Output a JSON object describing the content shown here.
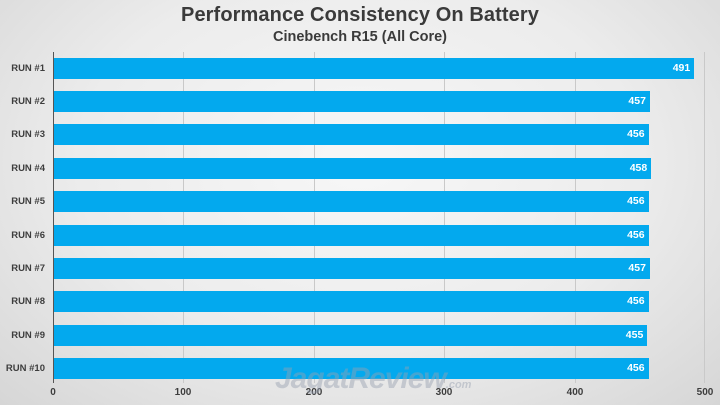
{
  "chart_data": {
    "type": "bar",
    "orientation": "horizontal",
    "title": "Performance Consistency On Battery",
    "subtitle": "Cinebench R15 (All Core)",
    "categories": [
      "RUN #1",
      "RUN #2",
      "RUN #3",
      "RUN #4",
      "RUN #5",
      "RUN #6",
      "RUN #7",
      "RUN #8",
      "RUN #9",
      "RUN #10"
    ],
    "values": [
      491,
      457,
      456,
      458,
      456,
      456,
      457,
      456,
      455,
      456
    ],
    "xlabel": "",
    "ylabel": "",
    "xlim": [
      0,
      500
    ],
    "xticks": [
      0,
      100,
      200,
      300,
      400,
      500
    ],
    "grid": true,
    "legend": "none",
    "data_labels": true,
    "bar_color": "#03a9ee"
  },
  "header": {
    "title": "Performance Consistency On Battery",
    "subtitle": "Cinebench R15 (All Core)"
  },
  "axis": {
    "ticks": [
      "0",
      "100",
      "200",
      "300",
      "400",
      "500"
    ]
  },
  "rows": [
    {
      "label": "RUN #1",
      "value": "491"
    },
    {
      "label": "RUN #2",
      "value": "457"
    },
    {
      "label": "RUN #3",
      "value": "456"
    },
    {
      "label": "RUN #4",
      "value": "458"
    },
    {
      "label": "RUN #5",
      "value": "456"
    },
    {
      "label": "RUN #6",
      "value": "456"
    },
    {
      "label": "RUN #7",
      "value": "457"
    },
    {
      "label": "RUN #8",
      "value": "456"
    },
    {
      "label": "RUN #9",
      "value": "455"
    },
    {
      "label": "RUN #10",
      "value": "456"
    }
  ],
  "watermark": {
    "brand": "JagatReview",
    "suffix": ".com"
  }
}
